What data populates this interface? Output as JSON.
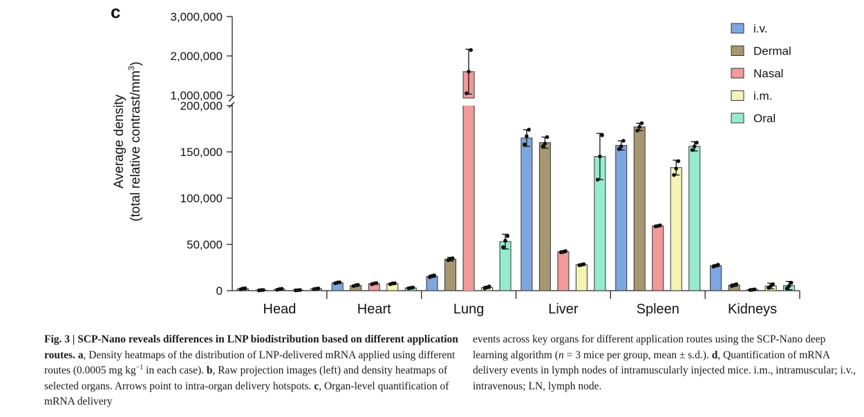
{
  "panel_label": "c",
  "chart_data": {
    "type": "bar",
    "title": "",
    "xlabel": "",
    "ylabel_line1": "Average density",
    "ylabel_line2": "(total relative contrast/mm",
    "ylabel_sup": "3",
    "ylabel_close": ")",
    "axis_break": true,
    "lower_ylim": [
      0,
      200000
    ],
    "lower_ticks": [
      0,
      50000,
      100000,
      150000,
      200000
    ],
    "lower_tick_labels": [
      "0",
      "50,000",
      "100,000",
      "150,000",
      "200,000"
    ],
    "upper_ylim": [
      1000000,
      3000000
    ],
    "upper_ticks": [
      1000000,
      2000000,
      3000000
    ],
    "upper_tick_labels": [
      "1,000,000",
      "2,000,000",
      "3,000,000"
    ],
    "legend_position": "top-right",
    "categories": [
      "Head",
      "Heart",
      "Lung",
      "Liver",
      "Spleen",
      "Kidneys"
    ],
    "series": [
      {
        "name": "i.v.",
        "color": "#7ea6e0",
        "values": [
          2000,
          8500,
          15500,
          165000,
          157000,
          27000
        ],
        "errors": [
          600,
          800,
          1200,
          9000,
          5000,
          1000
        ],
        "points": [
          [
            1500,
            2300,
            2500
          ],
          [
            8000,
            8800,
            9000
          ],
          [
            14500,
            16000,
            16500
          ],
          [
            158000,
            167000,
            174000
          ],
          [
            153000,
            156000,
            162000
          ],
          [
            26000,
            27000,
            28000
          ]
        ]
      },
      {
        "name": "Dermal",
        "color": "#a69770",
        "values": [
          500,
          5500,
          34000,
          160000,
          177000,
          6000
        ],
        "errors": [
          300,
          800,
          2000,
          6000,
          4000,
          1200
        ],
        "points": [
          [
            300,
            600,
            700
          ],
          [
            5000,
            5800,
            6200
          ],
          [
            33000,
            34500,
            35000
          ],
          [
            156000,
            159000,
            166000
          ],
          [
            173000,
            177000,
            181000
          ],
          [
            5000,
            6000,
            7000
          ]
        ]
      },
      {
        "name": "Nasal",
        "color": "#f09a9a",
        "values": [
          1500,
          7500,
          1600000,
          42000,
          70000,
          1000
        ],
        "errors": [
          500,
          800,
          570000,
          1000,
          800,
          400
        ],
        "points": [
          [
            1000,
            1600,
            2000
          ],
          [
            7000,
            7800,
            8200
          ],
          [
            1050000,
            1600000,
            2150000
          ],
          [
            41500,
            42000,
            42800
          ],
          [
            69500,
            70000,
            70600
          ],
          [
            700,
            1000,
            1400
          ]
        ]
      },
      {
        "name": "i.m.",
        "color": "#f4f4b4",
        "values": [
          500,
          7500,
          3500,
          28000,
          133000,
          5000
        ],
        "errors": [
          200,
          800,
          1200,
          1000,
          8000,
          3000
        ],
        "points": [
          [
            300,
            500,
            700
          ],
          [
            7000,
            7800,
            8000
          ],
          [
            2500,
            3500,
            4500
          ],
          [
            27500,
            28000,
            28600
          ],
          [
            125000,
            132000,
            140000
          ],
          [
            3000,
            5000,
            7000
          ]
        ]
      },
      {
        "name": "Oral",
        "color": "#96ebcf",
        "values": [
          2000,
          3000,
          53000,
          145000,
          156000,
          5500
        ],
        "errors": [
          400,
          500,
          8000,
          25000,
          5000,
          4500
        ],
        "points": [
          [
            1600,
            2000,
            2400
          ],
          [
            2600,
            3000,
            3400
          ],
          [
            47000,
            54000,
            59000
          ],
          [
            120000,
            145000,
            168000
          ],
          [
            152000,
            156000,
            160000
          ],
          [
            2500,
            5000,
            8500
          ]
        ]
      }
    ]
  },
  "caption_left": {
    "fig_num": "Fig. 3 | SCP-Nano reveals differences in LNP biodistribution based on different application routes.",
    "a_label": "a",
    "a_text_1": ", Density heatmaps of the distribution of LNP-delivered mRNA applied using different routes (0.0005 mg kg",
    "a_sup": "−1",
    "a_text_2": " in each case).",
    "b_label": "b",
    "b_text": ", Raw projection images (left) and density heatmaps of selected organs. Arrows point to intra-organ delivery hotspots.",
    "c_label": "c",
    "c_text": ", Organ-level quantification of mRNA delivery"
  },
  "caption_right": {
    "text_1": "events across key organs for different application routes using the SCP-Nano deep learning algorithm (",
    "n_var": "n",
    "text_2": " = 3 mice per group, mean ± s.d.).",
    "d_label": "d",
    "d_text": ", Quantification of mRNA delivery events in lymph nodes of intramuscularly injected mice.",
    "abbrev": "i.m., intramuscular; i.v., intravenous; LN, lymph node."
  }
}
